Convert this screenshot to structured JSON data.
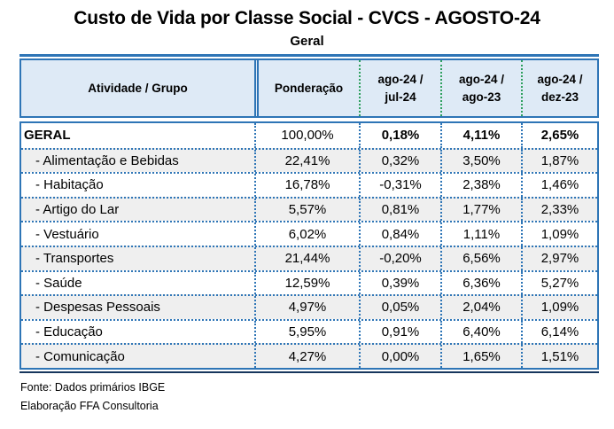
{
  "title": "Custo de Vida por Classe Social - CVCS - AGOSTO-24",
  "subtitle": "Geral",
  "chart_data": {
    "type": "table",
    "title": "Custo de Vida por Classe Social - CVCS - AGOSTO-24",
    "subtitle": "Geral",
    "columns": [
      "Atividade / Grupo",
      "Ponderação",
      "ago-24 / jul-24",
      "ago-24 / ago-23",
      "ago-24 / dez-23"
    ],
    "columns_display": [
      "Atividade / Grupo",
      "Ponderação",
      "ago-24  /\njul-24",
      "ago-24  /\nago-23",
      "ago-24  /\ndez-23"
    ],
    "rows": [
      {
        "label": "GERAL",
        "ponderacao": "100,00%",
        "ago24_jul24": "0,18%",
        "ago24_ago23": "4,11%",
        "ago24_dez23": "2,65%",
        "is_total": true,
        "shaded": false
      },
      {
        "label": "- Alimentação e Bebidas",
        "ponderacao": "22,41%",
        "ago24_jul24": "0,32%",
        "ago24_ago23": "3,50%",
        "ago24_dez23": "1,87%",
        "is_total": false,
        "shaded": true
      },
      {
        "label": "- Habitação",
        "ponderacao": "16,78%",
        "ago24_jul24": "-0,31%",
        "ago24_ago23": "2,38%",
        "ago24_dez23": "1,46%",
        "is_total": false,
        "shaded": false
      },
      {
        "label": "- Artigo do Lar",
        "ponderacao": "5,57%",
        "ago24_jul24": "0,81%",
        "ago24_ago23": "1,77%",
        "ago24_dez23": "2,33%",
        "is_total": false,
        "shaded": true
      },
      {
        "label": "- Vestuário",
        "ponderacao": "6,02%",
        "ago24_jul24": "0,84%",
        "ago24_ago23": "1,11%",
        "ago24_dez23": "1,09%",
        "is_total": false,
        "shaded": false
      },
      {
        "label": "- Transportes",
        "ponderacao": "21,44%",
        "ago24_jul24": "-0,20%",
        "ago24_ago23": "6,56%",
        "ago24_dez23": "2,97%",
        "is_total": false,
        "shaded": true
      },
      {
        "label": "- Saúde",
        "ponderacao": "12,59%",
        "ago24_jul24": "0,39%",
        "ago24_ago23": "6,36%",
        "ago24_dez23": "5,27%",
        "is_total": false,
        "shaded": false
      },
      {
        "label": "- Despesas Pessoais",
        "ponderacao": "4,97%",
        "ago24_jul24": "0,05%",
        "ago24_ago23": "2,04%",
        "ago24_dez23": "1,09%",
        "is_total": false,
        "shaded": true
      },
      {
        "label": "- Educação",
        "ponderacao": "5,95%",
        "ago24_jul24": "0,91%",
        "ago24_ago23": "6,40%",
        "ago24_dez23": "6,14%",
        "is_total": false,
        "shaded": false
      },
      {
        "label": "- Comunicação",
        "ponderacao": "4,27%",
        "ago24_jul24": "0,00%",
        "ago24_ago23": "1,65%",
        "ago24_dez23": "1,51%",
        "is_total": false,
        "shaded": true
      }
    ]
  },
  "footer": {
    "line1": "Fonte: Dados primários IBGE",
    "line2": "Elaboração FFA Consultoria"
  },
  "colors": {
    "border_blue": "#2E75B6",
    "header_bg": "#DEEAF6",
    "green_divider": "#2FA05F",
    "row_stripe": "#EFEFEF",
    "bottom_rule": "#17365D",
    "text": "#000000"
  }
}
